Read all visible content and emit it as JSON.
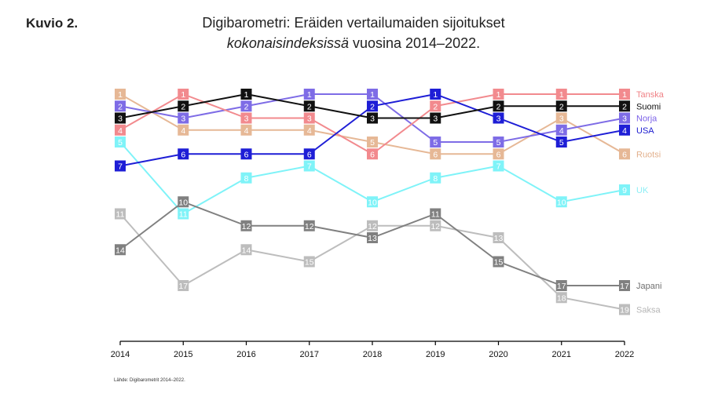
{
  "figure_label": "Kuvio 2.",
  "title_line1": "Digibarometri: Eräiden vertailumaiden sijoitukset",
  "title_line2_italic": "kokonaisindeksissä",
  "title_line2_rest": " vuosina 2014–2022.",
  "source_note": "Lähde: Digibarometrit 2014–2022.",
  "chart_data": {
    "type": "line",
    "title": "Digibarometri: Eräiden vertailumaiden sijoitukset kokonaisindeksissä vuosina 2014–2022.",
    "xlabel": "",
    "ylabel": "",
    "x": [
      2014,
      2015,
      2016,
      2017,
      2018,
      2019,
      2020,
      2021,
      2022
    ],
    "y_meaning": "rank (1 = best), axis inverted",
    "ylim": [
      1,
      19
    ],
    "grid": false,
    "legend": "labels at line ends (right)",
    "series": [
      {
        "name": "UK",
        "color": "#7FF3F8",
        "label_color": "#8DEFF5",
        "values": [
          5,
          11,
          8,
          7,
          10,
          8,
          7,
          10,
          9
        ]
      },
      {
        "name": "Saksa",
        "color": "#BDBDBD",
        "label_color": "#B5B5B5",
        "values": [
          11,
          17,
          14,
          15,
          12,
          12,
          13,
          18,
          19
        ]
      },
      {
        "name": "Japani",
        "color": "#808080",
        "label_color": "#707070",
        "values": [
          14,
          10,
          12,
          12,
          13,
          11,
          15,
          17,
          17
        ]
      },
      {
        "name": "Ruotsi",
        "color": "#E6B896",
        "label_color": "#E2B08C",
        "values": [
          1,
          4,
          4,
          4,
          5,
          6,
          6,
          3,
          6
        ]
      },
      {
        "name": "Norja",
        "color": "#7E6CE6",
        "label_color": "#7C62E8",
        "values": [
          2,
          3,
          2,
          1,
          1,
          5,
          5,
          4,
          3
        ]
      },
      {
        "name": "Tanska",
        "color": "#F28A8E",
        "label_color": "#F08286",
        "values": [
          4,
          1,
          3,
          3,
          6,
          2,
          1,
          1,
          1
        ]
      },
      {
        "name": "USA",
        "color": "#1E1ED6",
        "label_color": "#1A1AD0",
        "values": [
          7,
          6,
          6,
          6,
          2,
          1,
          3,
          5,
          4
        ]
      },
      {
        "name": "Suomi",
        "color": "#111111",
        "label_color": "#111111",
        "values": [
          3,
          2,
          1,
          2,
          3,
          3,
          2,
          2,
          2
        ]
      }
    ]
  }
}
